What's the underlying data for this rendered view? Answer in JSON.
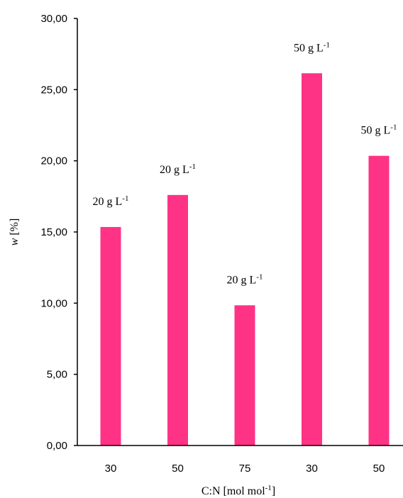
{
  "chart_data": {
    "type": "bar",
    "categories": [
      "30",
      "50",
      "75",
      "30",
      "50"
    ],
    "values": [
      15.35,
      17.6,
      9.85,
      26.15,
      20.35
    ],
    "bar_labels": [
      {
        "main": "20 g L",
        "sup": "-1"
      },
      {
        "main": "20 g L",
        "sup": "-1"
      },
      {
        "main": "20 g L",
        "sup": "-1"
      },
      {
        "main": "50 g L",
        "sup": "-1"
      },
      {
        "main": "50 g L",
        "sup": "-1"
      }
    ],
    "xlabel": {
      "main": "C:N [mol mol",
      "sup": "-1",
      "end": "]"
    },
    "ylabel": {
      "var": "w",
      "rest": " [%]"
    },
    "ylim": [
      0,
      30
    ],
    "yticks": [
      "0,00",
      "5,00",
      "10,00",
      "15,00",
      "20,00",
      "25,00",
      "30,00"
    ],
    "bar_color": "#ff3385",
    "grid": false,
    "legend": "none"
  }
}
